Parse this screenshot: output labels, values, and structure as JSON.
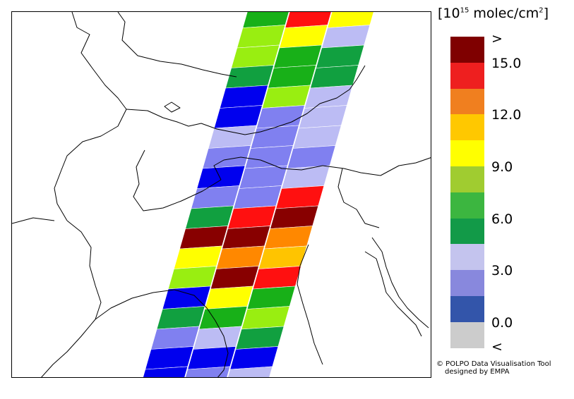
{
  "legend": {
    "unit_prefix": "[10",
    "unit_exponent": "15",
    "unit_suffix": " molec/cm",
    "unit_suffix_exponent": "2",
    "unit_close": "]",
    "over_label": ">",
    "under_label": "<",
    "tick_labels": [
      "15.0",
      "12.0",
      "9.0",
      "6.0",
      "3.0",
      "0.0"
    ],
    "classes": [
      {
        "key": "over",
        "color": "#7f0000"
      },
      {
        "key": "c14",
        "color": "#ee1f1f"
      },
      {
        "key": "c13",
        "color": "#f07f1f"
      },
      {
        "key": "c11",
        "color": "#ffc800"
      },
      {
        "key": "c10",
        "color": "#ffff00"
      },
      {
        "key": "c8",
        "color": "#a0cc30"
      },
      {
        "key": "c7",
        "color": "#3cb640"
      },
      {
        "key": "c5",
        "color": "#129a48"
      },
      {
        "key": "c4",
        "color": "#c4c4ee"
      },
      {
        "key": "c2",
        "color": "#8888dd"
      },
      {
        "key": "c1",
        "color": "#3355aa"
      },
      {
        "key": "under",
        "color": "#cccccc"
      }
    ]
  },
  "credit": {
    "line1": "© POLPO Data Visualisation Tool",
    "line2": "designed by EMPA"
  },
  "swath": {
    "pixel_colors": [
      [
        "green",
        "red",
        "yellow"
      ],
      [
        "lime",
        "yellow",
        "lavender"
      ],
      [
        "lime",
        "green",
        "dkgreen"
      ],
      [
        "dkgreen",
        "green",
        "dkgreen"
      ],
      [
        "blue",
        "lime",
        "lavender"
      ],
      [
        "blue",
        "periwinkle",
        "lavender"
      ],
      [
        "lavender",
        "periwinkle",
        "lavender"
      ],
      [
        "periwinkle",
        "periwinkle",
        "periwinkle"
      ],
      [
        "blue",
        "periwinkle",
        "lavender"
      ],
      [
        "periwinkle",
        "periwinkle",
        "red"
      ],
      [
        "dkgreen",
        "red",
        "maroon"
      ],
      [
        "maroon",
        "maroon",
        "orange"
      ],
      [
        "yellow",
        "orange",
        "gold"
      ],
      [
        "lime",
        "maroon",
        "red"
      ],
      [
        "blue",
        "yellow",
        "green"
      ],
      [
        "dkgreen",
        "green",
        "lime"
      ],
      [
        "periwinkle",
        "lavender",
        "dkgreen"
      ],
      [
        "blue",
        "blue",
        "blue"
      ],
      [
        "blue",
        "periwinkle",
        "lavender"
      ]
    ],
    "palette": {
      "green": "#18b018",
      "red": "#ff1010",
      "yellow": "#ffff00",
      "lime": "#99ee11",
      "lavender": "#bcbcf4",
      "dkgreen": "#11a040",
      "blue": "#0000ee",
      "periwinkle": "#8080f0",
      "maroon": "#880000",
      "orange": "#ff8800",
      "gold": "#ffc400"
    }
  }
}
